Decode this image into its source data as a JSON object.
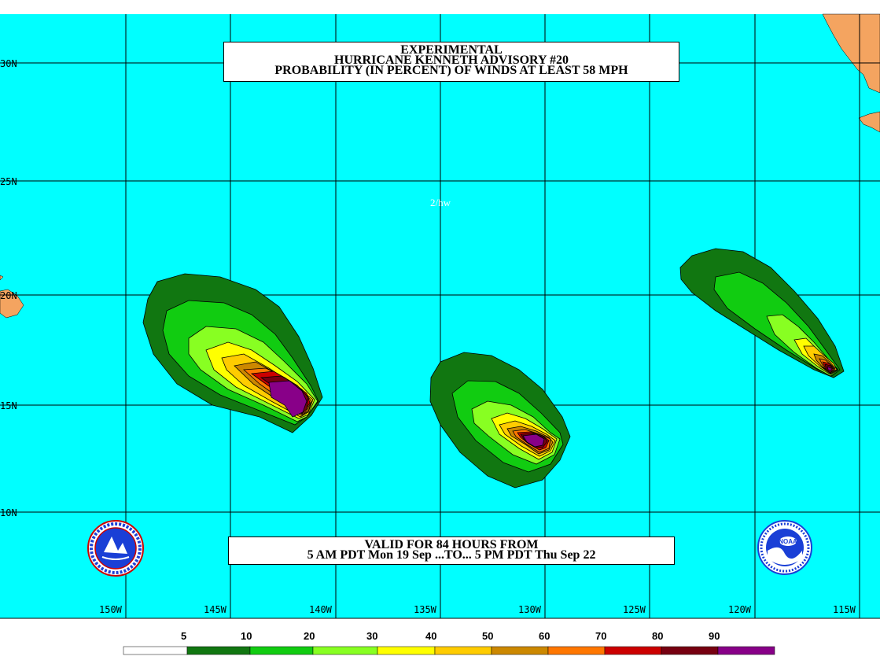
{
  "title": {
    "line1": "EXPERIMENTAL",
    "line2": "HURRICANE KENNETH ADVISORY #20",
    "line3": "PROBABILITY (IN PERCENT) OF WINDS AT LEAST 58 MPH"
  },
  "valid": {
    "line1": "VALID FOR 84 HOURS FROM",
    "line2": "5 AM PDT Mon 19 Sep ...TO... 5 PM PDT Thu Sep 22"
  },
  "tag": "2/hw",
  "latitudes": [
    "30N",
    "25N",
    "20N",
    "15N",
    "10N"
  ],
  "longitudes": [
    "150W",
    "145W",
    "140W",
    "135W",
    "130W",
    "125W",
    "120W",
    "115W"
  ],
  "legend": {
    "labels": [
      "5",
      "10",
      "20",
      "30",
      "40",
      "50",
      "60",
      "70",
      "80",
      "90"
    ],
    "colors": [
      "#ffffff",
      "#117711",
      "#11cc11",
      "#88ff22",
      "#ffff00",
      "#ffcc00",
      "#cc8800",
      "#ff7700",
      "#cc0000",
      "#770011",
      "#880088"
    ]
  },
  "colors": {
    "ocean": "#00ffff",
    "land": "#f4a460",
    "grid": "#000000"
  },
  "logos": {
    "left": "nws-logo",
    "right": "noaa-logo"
  }
}
